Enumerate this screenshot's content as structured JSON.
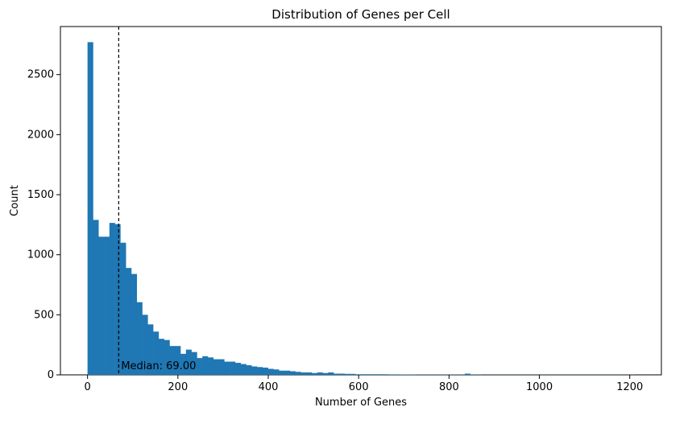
{
  "chart_data": {
    "type": "bar",
    "title": "Distribution of Genes per Cell",
    "xlabel": "Number of Genes",
    "ylabel": "Count",
    "xlim": [
      -60,
      1270
    ],
    "ylim": [
      0,
      2900
    ],
    "xticks": [
      0,
      200,
      400,
      600,
      800,
      1000,
      1200
    ],
    "yticks": [
      0,
      500,
      1000,
      1500,
      2000,
      2500
    ],
    "bin_width": 12.1,
    "bin_start": 0,
    "counts": [
      2770,
      1290,
      1150,
      1150,
      1265,
      1255,
      1100,
      890,
      840,
      605,
      500,
      420,
      360,
      300,
      290,
      240,
      240,
      175,
      210,
      190,
      140,
      155,
      145,
      130,
      130,
      110,
      110,
      100,
      90,
      80,
      70,
      65,
      60,
      50,
      45,
      35,
      35,
      30,
      25,
      20,
      20,
      15,
      20,
      15,
      20,
      10,
      10,
      8,
      8,
      5,
      5,
      5,
      5,
      5,
      5,
      4,
      4,
      3,
      3,
      3,
      2,
      2,
      2,
      2,
      2,
      2,
      2,
      2,
      2,
      10,
      2,
      2,
      1,
      1,
      1,
      1,
      1,
      1,
      1,
      1,
      1,
      1,
      1,
      1,
      1,
      1,
      1,
      1,
      1,
      1,
      1,
      1,
      1,
      1,
      1,
      1,
      1,
      1,
      1,
      1
    ],
    "median": {
      "value": 69.0,
      "label": "Median: 69.00",
      "style": "dashed",
      "color": "#000000"
    },
    "grid": false,
    "colors": {
      "bar": "#1f77b4"
    }
  }
}
